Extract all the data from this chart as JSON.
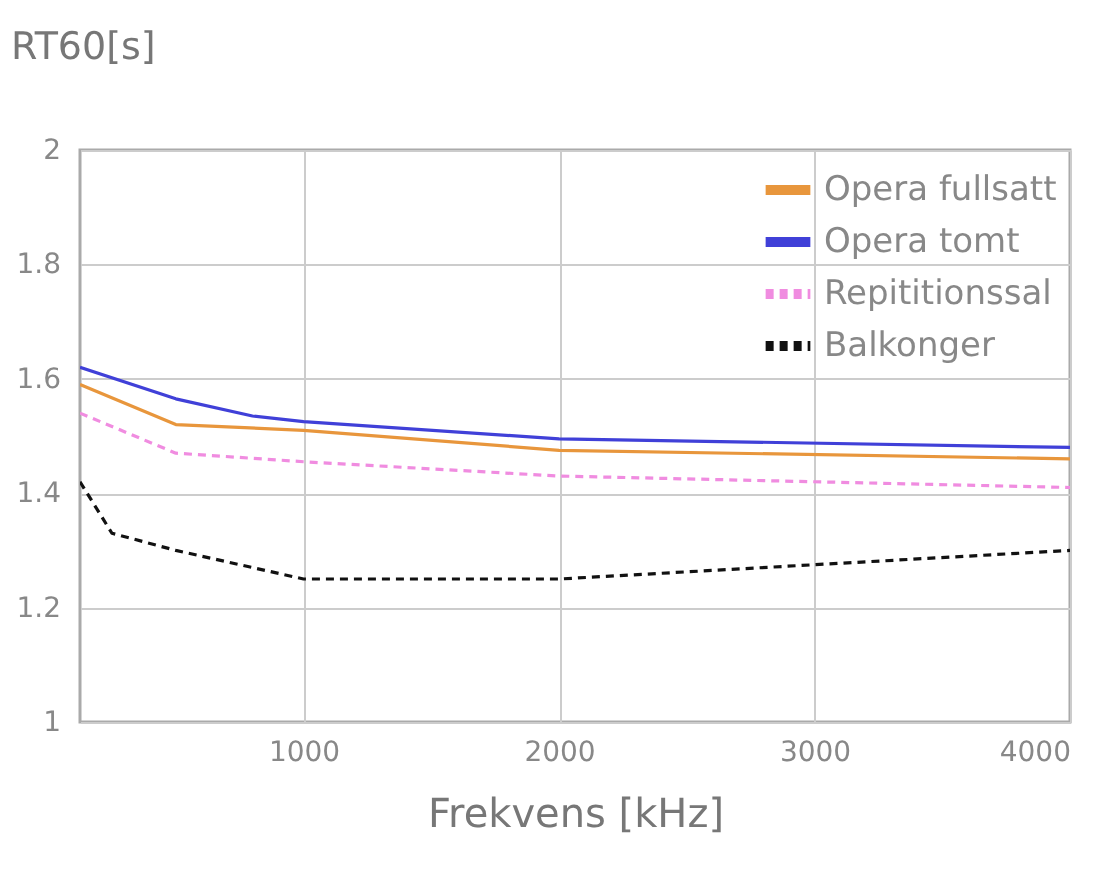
{
  "chart_data": {
    "type": "line",
    "xlabel": "Frekvens [kHz]",
    "ylabel": "RT60[s]",
    "xlim": [
      125,
      4000
    ],
    "xticks": [
      1000,
      2000,
      3000,
      4000
    ],
    "ylim": [
      1,
      2
    ],
    "yticks": [
      1,
      1.2,
      1.4,
      1.6,
      1.8,
      2
    ],
    "grid": true,
    "legend": "top right",
    "series": [
      {
        "name": "Opera fullsatt",
        "color": "#e8963c",
        "line_style": "solid",
        "x": [
          125,
          500,
          1000,
          2000,
          4000
        ],
        "values": [
          1.59,
          1.52,
          1.51,
          1.475,
          1.46
        ]
      },
      {
        "name": "Opera tomt",
        "color": "#4040d8",
        "line_style": "solid",
        "x": [
          125,
          500,
          800,
          1000,
          2000,
          4000
        ],
        "values": [
          1.62,
          1.565,
          1.535,
          1.525,
          1.495,
          1.48
        ]
      },
      {
        "name": "Repititionssal",
        "color": "#f08ce0",
        "line_style": "dashed",
        "x": [
          125,
          500,
          1000,
          2000,
          4000
        ],
        "values": [
          1.54,
          1.47,
          1.455,
          1.43,
          1.41
        ]
      },
      {
        "name": "Balkonger",
        "color": "#111111",
        "line_style": "dashed",
        "x": [
          125,
          250,
          500,
          1000,
          2000,
          4000
        ],
        "values": [
          1.42,
          1.33,
          1.3,
          1.25,
          1.25,
          1.3
        ]
      }
    ]
  }
}
